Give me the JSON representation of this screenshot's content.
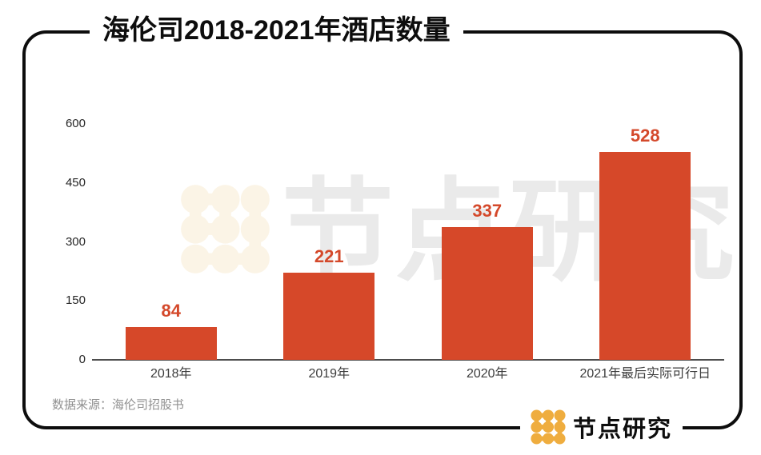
{
  "header": {
    "title": "海伦司2018-2021年酒店数量"
  },
  "footer": {
    "source_note": "数据来源：海伦司招股书"
  },
  "watermark": {
    "text": "节点研究",
    "icon": "node-dots-logo"
  },
  "logo": {
    "text": "节点研究",
    "icon": "node-dots-logo"
  },
  "colors": {
    "ink": "#0d0d0d",
    "bar": "#d64829",
    "bar-label": "#d4492b",
    "axis": "#4d4d4d",
    "x-label": "#3c3c3c",
    "y-label": "#262626",
    "source": "#909090",
    "wm-text": "#eaeaea",
    "wm-icon": "#fbf4e6",
    "logo-gold": "#efad3f"
  },
  "chart_data": {
    "type": "bar",
    "title": "海伦司2018-2021年酒店数量",
    "categories": [
      "2018年",
      "2019年",
      "2020年",
      "2021年最后实际可行日"
    ],
    "values": [
      84,
      221,
      337,
      528
    ],
    "xlabel": "",
    "ylabel": "",
    "ylim": [
      0,
      600
    ],
    "yticks": [
      0,
      150,
      300,
      450,
      600
    ],
    "grid": false,
    "legend": false,
    "data_labels": true,
    "source": "数据来源：海伦司招股书"
  }
}
